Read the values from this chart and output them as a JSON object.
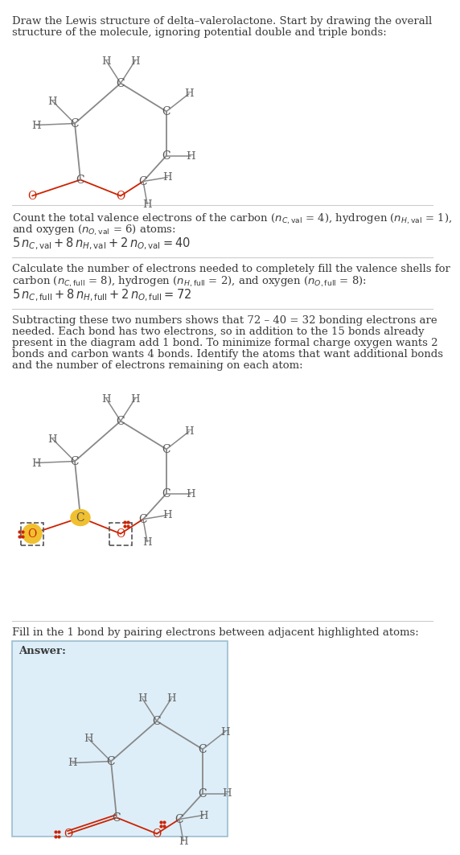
{
  "bg_color": "#ffffff",
  "text_color": "#3a3a3a",
  "bond_color": "#888888",
  "O_color": "#cc2200",
  "C_color": "#555555",
  "H_color": "#666666",
  "highlight_yellow": "#f0c030",
  "answer_bg": "#ddeef8",
  "sep_color": "#cccccc",
  "s1": [
    "Draw the Lewis structure of delta–valerolactone. Start by drawing the overall",
    "structure of the molecule, ignoring potential double and triple bonds:"
  ],
  "s2a": "Count the total valence electrons of the carbon ($n_{C,\\mathrm{val}}$ = 4), hydrogen ($n_{H,\\mathrm{val}}$ = 1),",
  "s2b": "and oxygen ($n_{O,\\mathrm{val}}$ = 6) atoms:",
  "s2c": "$5\\,n_{C,\\mathrm{val}} + 8\\,n_{H,\\mathrm{val}} + 2\\,n_{O,\\mathrm{val}} = 40$",
  "s3a": "Calculate the number of electrons needed to completely fill the valence shells for",
  "s3b": "carbon ($n_{C,\\mathrm{full}}$ = 8), hydrogen ($n_{H,\\mathrm{full}}$ = 2), and oxygen ($n_{O,\\mathrm{full}}$ = 8):",
  "s3c": "$5\\,n_{C,\\mathrm{full}} + 8\\,n_{H,\\mathrm{full}} + 2\\,n_{O,\\mathrm{full}} = 72$",
  "s4": [
    "Subtracting these two numbers shows that 72 – 40 = 32 bonding electrons are",
    "needed. Each bond has two electrons, so in addition to the 15 bonds already",
    "present in the diagram add 1 bond. To minimize formal charge oxygen wants 2",
    "bonds and carbon wants 4 bonds. Identify the atoms that want additional bonds",
    "and the number of electrons remaining on each atom:"
  ],
  "s5": "Fill in the 1 bond by pairing electrons between adjacent highlighted atoms:",
  "answer_label": "Answer:"
}
